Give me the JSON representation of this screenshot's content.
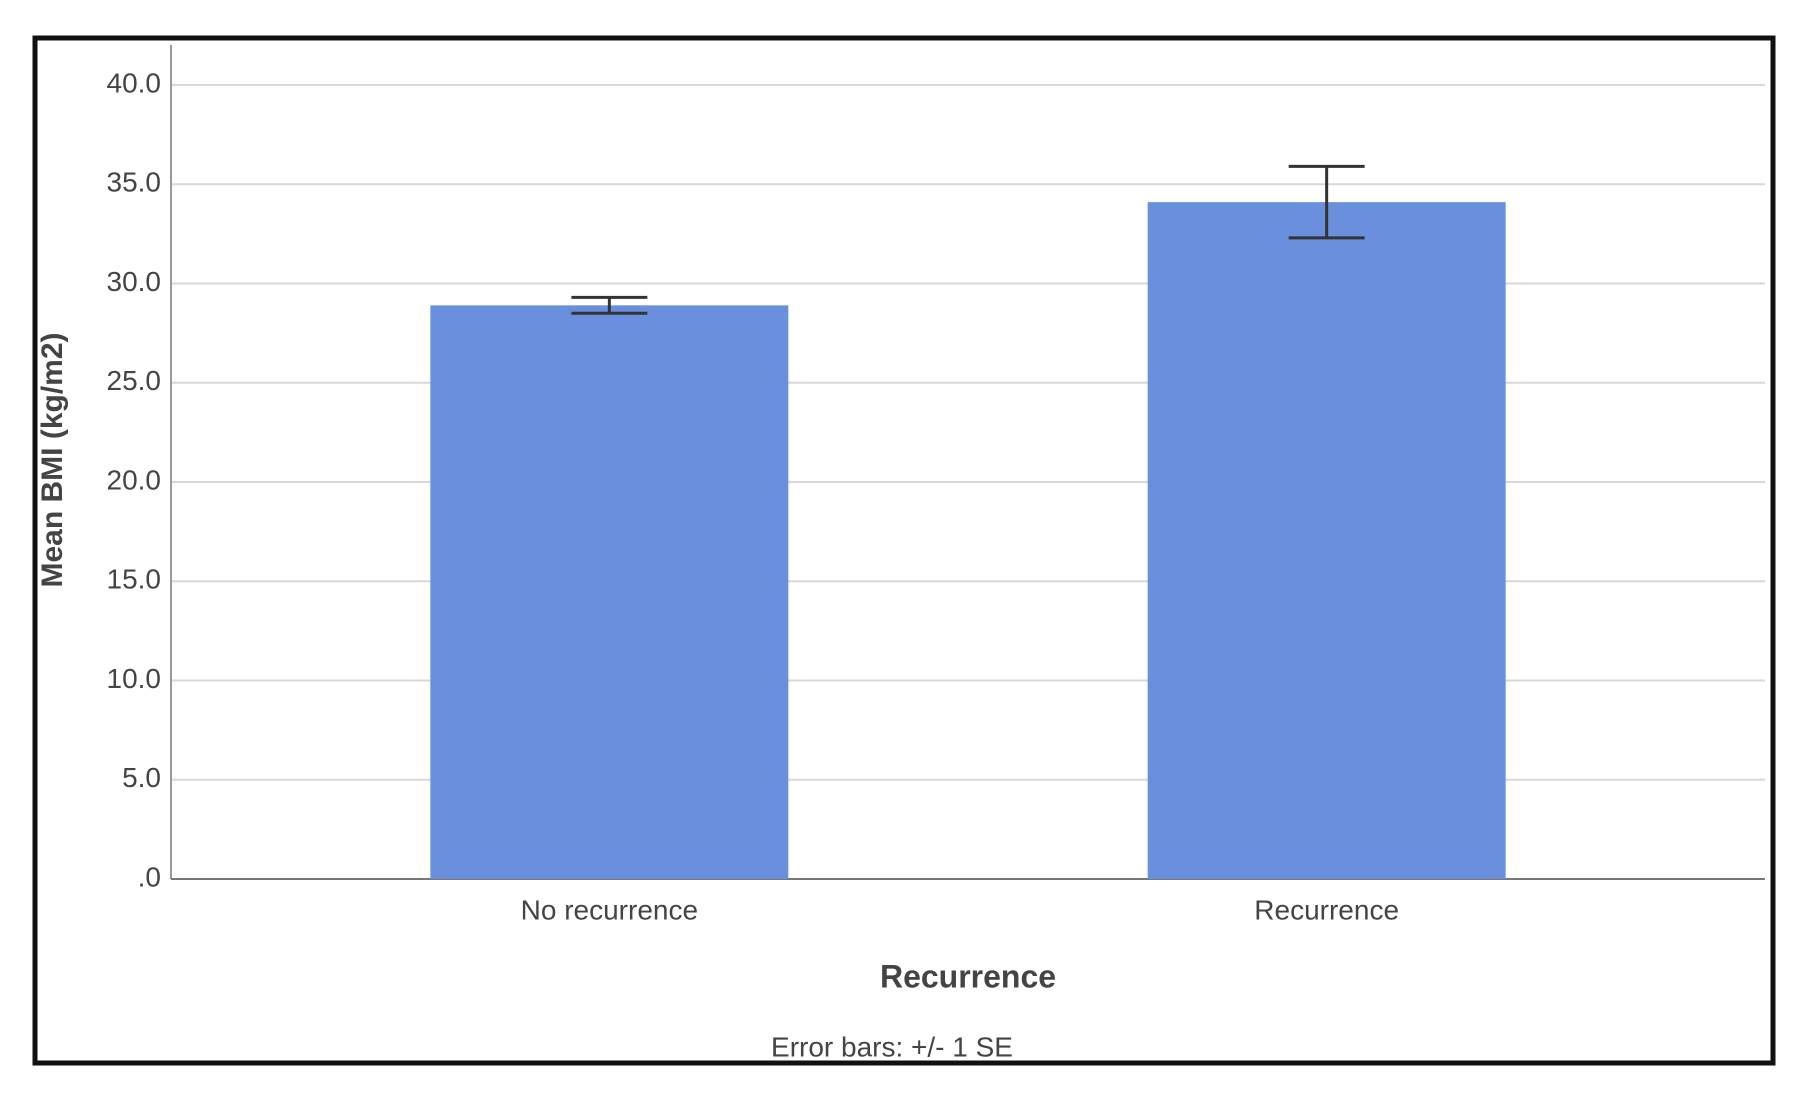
{
  "chart_data": {
    "type": "bar",
    "categories": [
      "No recurrence",
      "Recurrence"
    ],
    "values": [
      28.9,
      34.1
    ],
    "errors": [
      0.4,
      1.8
    ],
    "color": "#6a8fdc",
    "x_label": "Recurrence",
    "y_label": "Mean BMI (kg/m2)",
    "note": "Error bars: +/- 1 SE",
    "ylim": [
      0,
      40
    ],
    "yticks": [
      {
        "value": 0,
        "label": ".0"
      },
      {
        "value": 5,
        "label": "5.0"
      },
      {
        "value": 10,
        "label": "10.0"
      },
      {
        "value": 15,
        "label": "15.0"
      },
      {
        "value": 20,
        "label": "20.0"
      },
      {
        "value": 25,
        "label": "25.0"
      },
      {
        "value": 30,
        "label": "30.0"
      },
      {
        "value": 35,
        "label": "35.0"
      },
      {
        "value": 40,
        "label": "40.0"
      }
    ],
    "grid": true
  }
}
